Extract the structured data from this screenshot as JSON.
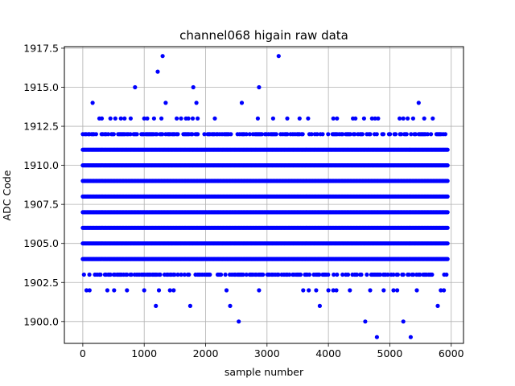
{
  "chart_data": {
    "type": "scatter",
    "title": "channel068 higain raw data",
    "xlabel": "sample number",
    "ylabel": "ADC Code",
    "xlim": [
      -300,
      6200
    ],
    "ylim": [
      1898.6,
      1917.6
    ],
    "xticks": [
      0,
      1000,
      2000,
      3000,
      4000,
      5000,
      6000
    ],
    "yticks": [
      1900.0,
      1902.5,
      1905.0,
      1907.5,
      1910.0,
      1912.5,
      1915.0,
      1917.5
    ],
    "ytick_labels": [
      "1900.0",
      "1902.5",
      "1905.0",
      "1907.5",
      "1910.0",
      "1912.5",
      "1915.0",
      "1917.5"
    ],
    "grid": true,
    "marker_color": "#0000ff",
    "x_range": [
      0,
      5950
    ],
    "dense_levels": [
      1904,
      1905,
      1906,
      1907,
      1908,
      1909,
      1910,
      1911
    ],
    "moderate_levels": [
      1903,
      1912
    ],
    "points": [
      [
        850,
        1915
      ],
      [
        1800,
        1915
      ],
      [
        2870,
        1915
      ],
      [
        1220,
        1916
      ],
      [
        1300,
        1917
      ],
      [
        3190,
        1917
      ],
      [
        160,
        1914
      ],
      [
        1350,
        1914
      ],
      [
        1850,
        1914
      ],
      [
        2590,
        1914
      ],
      [
        5470,
        1914
      ],
      [
        270,
        1913
      ],
      [
        310,
        1913
      ],
      [
        450,
        1913
      ],
      [
        530,
        1913
      ],
      [
        620,
        1913
      ],
      [
        680,
        1913
      ],
      [
        780,
        1913
      ],
      [
        1000,
        1913
      ],
      [
        1050,
        1913
      ],
      [
        1160,
        1913
      ],
      [
        1280,
        1913
      ],
      [
        1530,
        1913
      ],
      [
        1600,
        1913
      ],
      [
        1680,
        1913
      ],
      [
        1720,
        1913
      ],
      [
        1790,
        1913
      ],
      [
        1870,
        1913
      ],
      [
        2150,
        1913
      ],
      [
        2850,
        1913
      ],
      [
        3100,
        1913
      ],
      [
        3330,
        1913
      ],
      [
        3530,
        1913
      ],
      [
        3670,
        1913
      ],
      [
        4080,
        1913
      ],
      [
        4140,
        1913
      ],
      [
        4400,
        1913
      ],
      [
        4440,
        1913
      ],
      [
        4580,
        1913
      ],
      [
        4710,
        1913
      ],
      [
        4760,
        1913
      ],
      [
        4810,
        1913
      ],
      [
        5160,
        1913
      ],
      [
        5220,
        1913
      ],
      [
        5290,
        1913
      ],
      [
        5380,
        1913
      ],
      [
        5560,
        1913
      ],
      [
        5700,
        1913
      ],
      [
        60,
        1902
      ],
      [
        110,
        1902
      ],
      [
        400,
        1902
      ],
      [
        510,
        1902
      ],
      [
        720,
        1902
      ],
      [
        1000,
        1902
      ],
      [
        1240,
        1902
      ],
      [
        1420,
        1902
      ],
      [
        1480,
        1902
      ],
      [
        2340,
        1902
      ],
      [
        2870,
        1902
      ],
      [
        3590,
        1902
      ],
      [
        3680,
        1902
      ],
      [
        3800,
        1902
      ],
      [
        4000,
        1902
      ],
      [
        4080,
        1902
      ],
      [
        4130,
        1902
      ],
      [
        4350,
        1902
      ],
      [
        4680,
        1902
      ],
      [
        4900,
        1902
      ],
      [
        5060,
        1902
      ],
      [
        5120,
        1902
      ],
      [
        5440,
        1902
      ],
      [
        5830,
        1902
      ],
      [
        5880,
        1902
      ],
      [
        1190,
        1901
      ],
      [
        1750,
        1901
      ],
      [
        2400,
        1901
      ],
      [
        3860,
        1901
      ],
      [
        5780,
        1901
      ],
      [
        2540,
        1900
      ],
      [
        4600,
        1900
      ],
      [
        5220,
        1900
      ],
      [
        4790,
        1899
      ],
      [
        5340,
        1899
      ]
    ]
  }
}
